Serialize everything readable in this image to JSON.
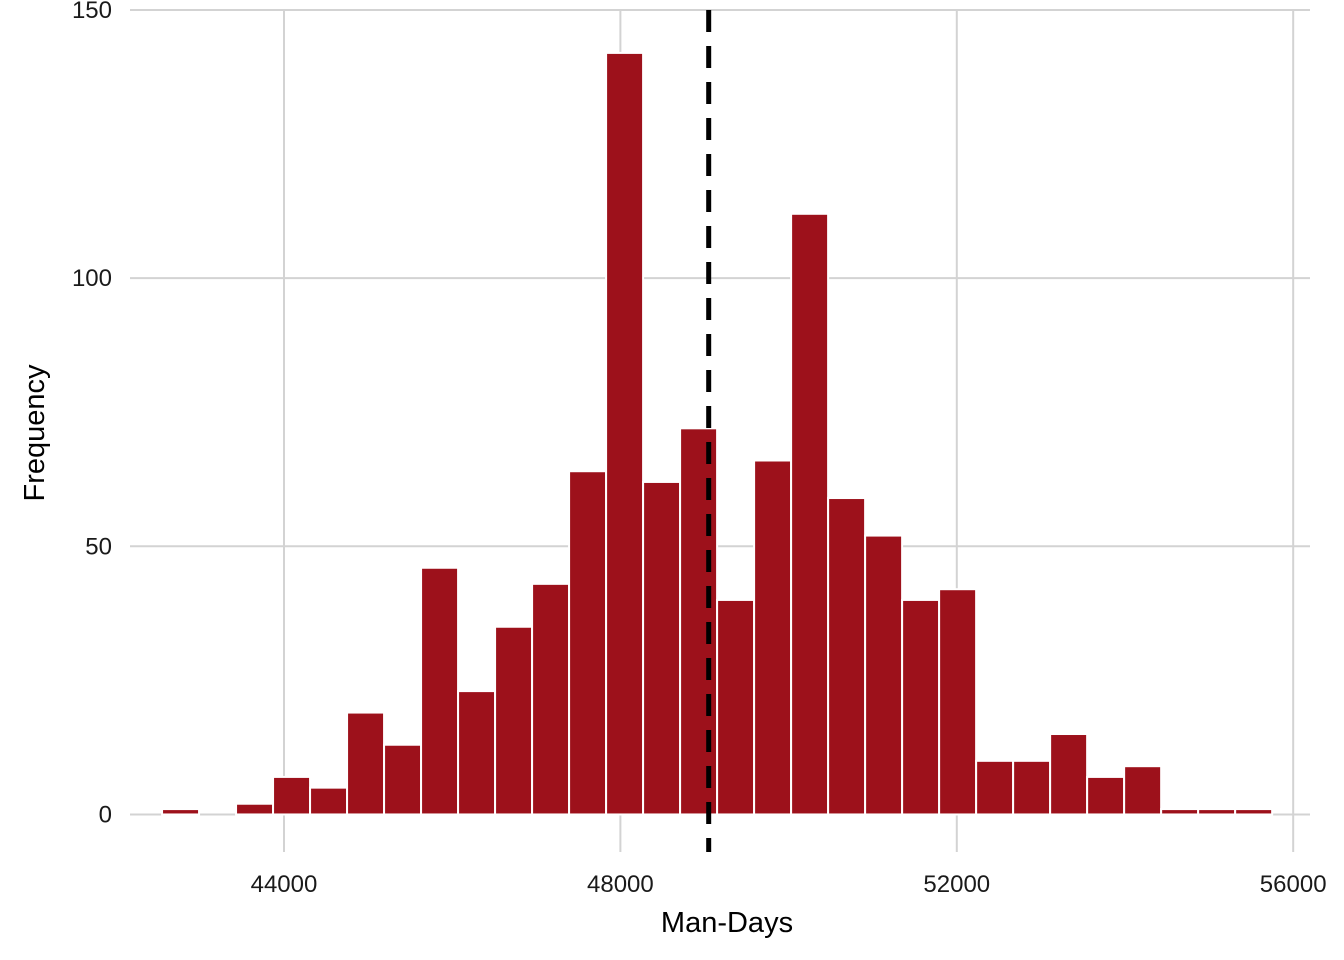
{
  "chart_data": {
    "type": "bar",
    "subtype": "histogram",
    "title": "",
    "xlabel": "Man-Days",
    "ylabel": "Frequency",
    "xlim": [
      42050,
      56200
    ],
    "ylim": [
      -7,
      150
    ],
    "x_ticks": [
      44000,
      48000,
      52000,
      56000
    ],
    "y_ticks": [
      0,
      50,
      100,
      150
    ],
    "grid": true,
    "legend": "none",
    "bin_width": 440,
    "bin_starts": [
      42550,
      42990,
      43430,
      43870,
      44310,
      44750,
      45190,
      45630,
      46070,
      46510,
      46950,
      47390,
      47830,
      48270,
      48710,
      49150,
      49590,
      50030,
      50470,
      50910,
      51350,
      51790,
      52230,
      52670,
      53110,
      53550,
      53990,
      54430,
      54870,
      55310
    ],
    "values": [
      1,
      0,
      2,
      7,
      5,
      19,
      13,
      46,
      23,
      35,
      43,
      64,
      142,
      62,
      72,
      40,
      66,
      112,
      59,
      52,
      40,
      42,
      10,
      10,
      15,
      7,
      9,
      1,
      1,
      1
    ],
    "reference_line": {
      "x": 49050,
      "style": "dashed",
      "color": "#000000"
    },
    "colors": {
      "bar": "#9d111b",
      "bar_border": "#ffffff",
      "grid": "#d3d3d3"
    }
  }
}
